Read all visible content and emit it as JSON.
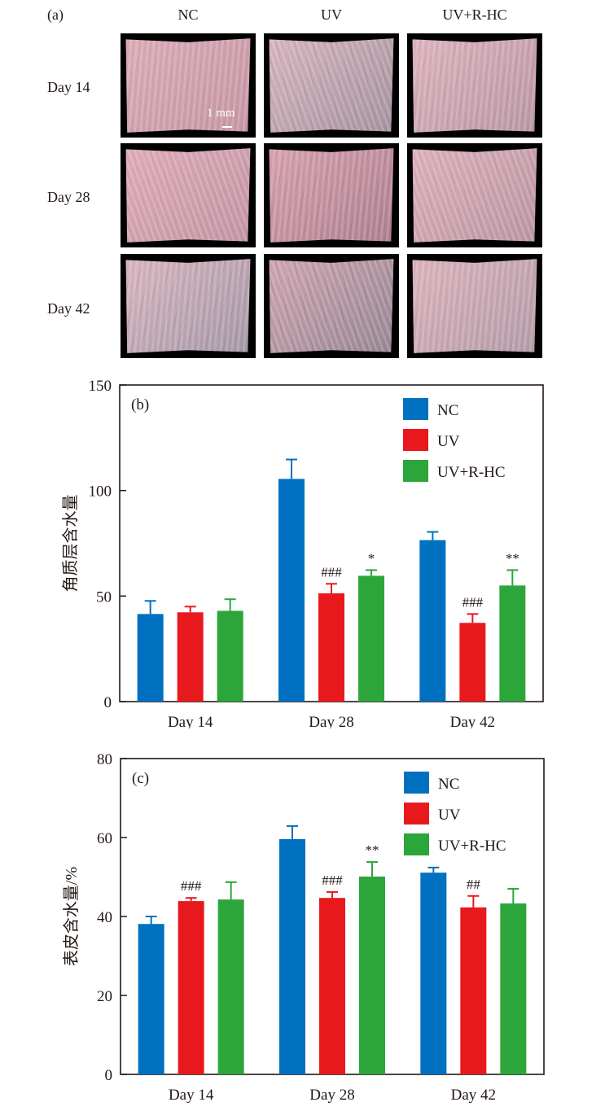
{
  "figure": {
    "panel_a": {
      "label": "(a)",
      "columns": [
        "NC",
        "UV",
        "UV+R-HC"
      ],
      "rows": [
        "Day 14",
        "Day 28",
        "Day 42"
      ],
      "scale_bar": "1 mm",
      "photos": [
        {
          "row": "Day 14",
          "col": "NC",
          "tone": "#d9a9b4",
          "ridge": "#b98a98",
          "dark": 0.1
        },
        {
          "row": "Day 14",
          "col": "UV",
          "tone": "#d6b3bc",
          "ridge": "#8e8290",
          "dark": 0.3
        },
        {
          "row": "Day 14",
          "col": "UV+R-HC",
          "tone": "#dbb1bb",
          "ridge": "#a88896",
          "dark": 0.2
        },
        {
          "row": "Day 28",
          "col": "NC",
          "tone": "#ddaab6",
          "ridge": "#b58898",
          "dark": 0.15
        },
        {
          "row": "Day 28",
          "col": "UV",
          "tone": "#d69fac",
          "ridge": "#9a6f80",
          "dark": 0.3
        },
        {
          "row": "Day 28",
          "col": "UV+R-HC",
          "tone": "#dcaeb8",
          "ridge": "#a88896",
          "dark": 0.18
        },
        {
          "row": "Day 42",
          "col": "NC",
          "tone": "#d8b3bd",
          "ridge": "#8c8a9c",
          "dark": 0.28
        },
        {
          "row": "Day 42",
          "col": "UV",
          "tone": "#cfa3ae",
          "ridge": "#7e7886",
          "dark": 0.4
        },
        {
          "row": "Day 42",
          "col": "UV+R-HC",
          "tone": "#dbb0b9",
          "ridge": "#a0909e",
          "dark": 0.15
        }
      ]
    }
  },
  "chart_data": [
    {
      "type": "bar",
      "panel_label": "(b)",
      "title": "",
      "xlabel": "",
      "ylabel": "角质层含水量",
      "ylim": [
        0,
        150
      ],
      "yticks": [
        0,
        50,
        100,
        150
      ],
      "categories": [
        "Day 14",
        "Day 28",
        "Day 42"
      ],
      "legend_position": "top-right",
      "grid": false,
      "series": [
        {
          "name": "NC",
          "color": "#0071c1",
          "values": [
            41.5,
            105.5,
            76.5
          ],
          "errors": [
            6.2,
            9.2,
            3.9
          ],
          "annotations": [
            "",
            "",
            ""
          ]
        },
        {
          "name": "UV",
          "color": "#e8191d",
          "values": [
            42.3,
            51.3,
            37.3
          ],
          "errors": [
            2.7,
            4.5,
            4.2
          ],
          "annotations": [
            "",
            "###",
            "###"
          ]
        },
        {
          "name": "UV+R-HC",
          "color": "#2ca63b",
          "values": [
            43.0,
            59.6,
            55.0
          ],
          "errors": [
            5.5,
            2.7,
            7.3
          ],
          "annotations": [
            "",
            "*",
            "**"
          ]
        }
      ]
    },
    {
      "type": "bar",
      "panel_label": "(c)",
      "title": "",
      "xlabel": "",
      "ylabel": "表皮含水量/%",
      "ylim": [
        0,
        80
      ],
      "yticks": [
        0,
        20,
        40,
        60,
        80
      ],
      "categories": [
        "Day 14",
        "Day 28",
        "Day 42"
      ],
      "legend_position": "top-right",
      "grid": false,
      "series": [
        {
          "name": "NC",
          "color": "#0071c1",
          "values": [
            38.1,
            59.6,
            51.1
          ],
          "errors": [
            1.9,
            3.3,
            1.3
          ],
          "annotations": [
            "",
            "",
            ""
          ]
        },
        {
          "name": "UV",
          "color": "#e8191d",
          "values": [
            43.9,
            44.7,
            42.3
          ],
          "errors": [
            0.8,
            1.5,
            2.9
          ],
          "annotations": [
            "###",
            "###",
            "##"
          ]
        },
        {
          "name": "UV+R-HC",
          "color": "#2ca63b",
          "values": [
            44.3,
            50.1,
            43.3
          ],
          "errors": [
            4.4,
            3.7,
            3.7
          ],
          "annotations": [
            "",
            "**",
            ""
          ]
        }
      ]
    }
  ]
}
